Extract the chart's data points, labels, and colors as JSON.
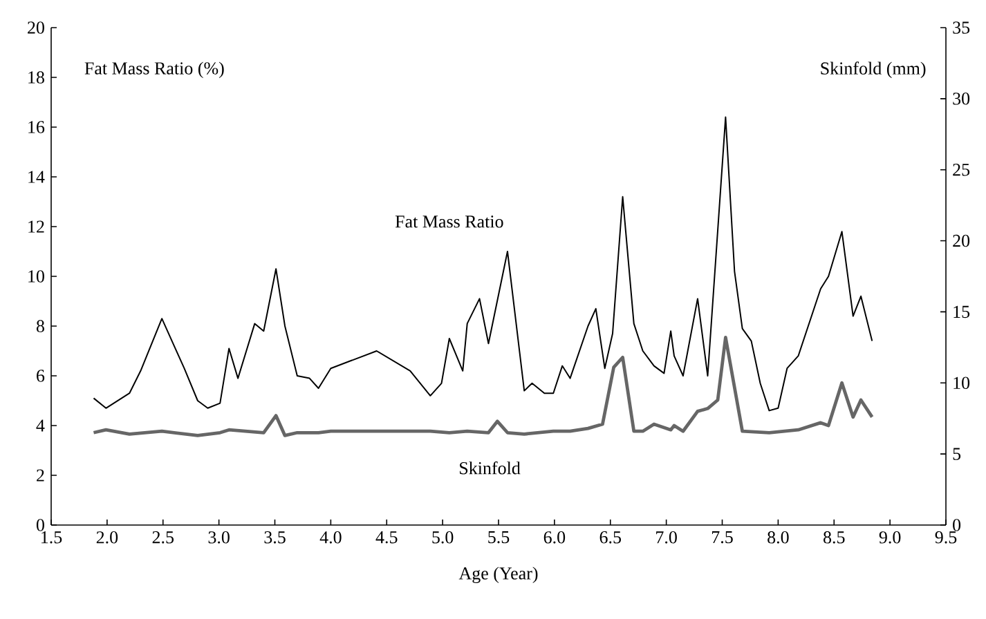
{
  "chart_data": {
    "type": "line",
    "xlabel": "Age (Year)",
    "ylabel": "Fat Mass Ratio (%)",
    "y2label": "Skinfold (mm)",
    "xlim": [
      1.5,
      9.5
    ],
    "xticks": [
      1.5,
      {
        "value": 2,
        "label": "2.0"
      },
      2.5,
      {
        "value": 3,
        "label": "3.0"
      },
      3.5,
      {
        "value": 4,
        "label": "4.0"
      },
      4.5,
      {
        "value": 5,
        "label": "5.0"
      },
      5.5,
      {
        "value": 6,
        "label": "6.0"
      },
      6.5,
      {
        "value": 7,
        "label": "7.0"
      },
      7.5,
      {
        "value": 8,
        "label": "8.0"
      },
      8.5,
      {
        "value": 9,
        "label": "9.0"
      },
      9.5
    ],
    "ylim": [
      0,
      20
    ],
    "yticks": [
      0,
      2,
      4,
      6,
      8,
      10,
      12,
      14,
      16,
      18,
      20
    ],
    "y2lim": [
      0,
      35
    ],
    "y2ticks": [
      0,
      5,
      10,
      15,
      20,
      25,
      30,
      35
    ],
    "grid": false,
    "legend": false,
    "marker": "none",
    "line_style": "solid",
    "series": [
      {
        "name": "Fat Mass Ratio",
        "color": "#000000",
        "x": [
          1.88,
          1.99,
          2.2,
          2.3,
          2.49,
          2.69,
          2.81,
          2.9,
          3.01,
          3.09,
          3.17,
          3.32,
          3.4,
          3.51,
          3.59,
          3.7,
          3.81,
          3.89,
          4.0,
          4.41,
          4.71,
          4.89,
          4.99,
          5.06,
          5.18,
          5.22,
          5.33,
          5.41,
          5.58,
          5.73,
          5.8,
          5.91,
          5.99,
          6.07,
          6.14,
          6.3,
          6.37,
          6.45,
          6.52,
          6.61,
          6.71,
          6.79,
          6.89,
          6.98,
          7.04,
          7.07,
          7.15,
          7.28,
          7.37,
          7.53,
          7.61,
          7.68,
          7.76,
          7.84,
          7.92,
          8.0,
          8.08,
          8.18,
          8.38,
          8.45,
          8.57,
          8.67,
          8.74,
          8.84
        ],
        "values": [
          5.1,
          4.7,
          5.3,
          6.2,
          8.3,
          6.3,
          5.0,
          4.7,
          4.9,
          7.1,
          5.9,
          8.1,
          7.8,
          10.3,
          8.0,
          6.0,
          5.9,
          5.5,
          6.3,
          7.0,
          6.2,
          5.2,
          5.7,
          7.5,
          6.2,
          8.1,
          9.1,
          7.3,
          11.0,
          5.4,
          5.7,
          5.3,
          5.3,
          6.4,
          5.9,
          8.0,
          8.7,
          6.3,
          7.7,
          13.2,
          8.1,
          7.0,
          6.4,
          6.1,
          7.8,
          6.8,
          6.0,
          9.1,
          6.0,
          16.4,
          10.2,
          7.9,
          7.4,
          5.7,
          4.6,
          4.7,
          6.3,
          6.8,
          9.5,
          10.0,
          11.8,
          8.4,
          9.2,
          7.4
        ]
      },
      {
        "name": "Skinfold",
        "color": "#666666",
        "axis": "y2",
        "x": [
          1.88,
          1.99,
          2.2,
          2.49,
          2.81,
          3.01,
          3.09,
          3.4,
          3.51,
          3.59,
          3.7,
          3.89,
          4.0,
          4.41,
          4.89,
          5.06,
          5.22,
          5.41,
          5.49,
          5.58,
          5.73,
          5.99,
          6.14,
          6.3,
          6.43,
          6.53,
          6.61,
          6.71,
          6.79,
          6.89,
          7.04,
          7.07,
          7.15,
          7.28,
          7.37,
          7.46,
          7.53,
          7.68,
          7.92,
          8.18,
          8.38,
          8.45,
          8.57,
          8.67,
          8.74,
          8.84
        ],
        "values": [
          6.5,
          6.7,
          6.4,
          6.6,
          6.3,
          6.5,
          6.7,
          6.5,
          7.7,
          6.3,
          6.5,
          6.5,
          6.6,
          6.6,
          6.6,
          6.5,
          6.6,
          6.5,
          7.3,
          6.5,
          6.4,
          6.6,
          6.6,
          6.8,
          7.1,
          11.1,
          11.8,
          6.6,
          6.6,
          7.1,
          6.7,
          7.0,
          6.6,
          8.0,
          8.2,
          8.8,
          13.2,
          6.6,
          6.5,
          6.7,
          7.2,
          7.0,
          10.0,
          7.6,
          8.8,
          7.6
        ]
      }
    ]
  }
}
